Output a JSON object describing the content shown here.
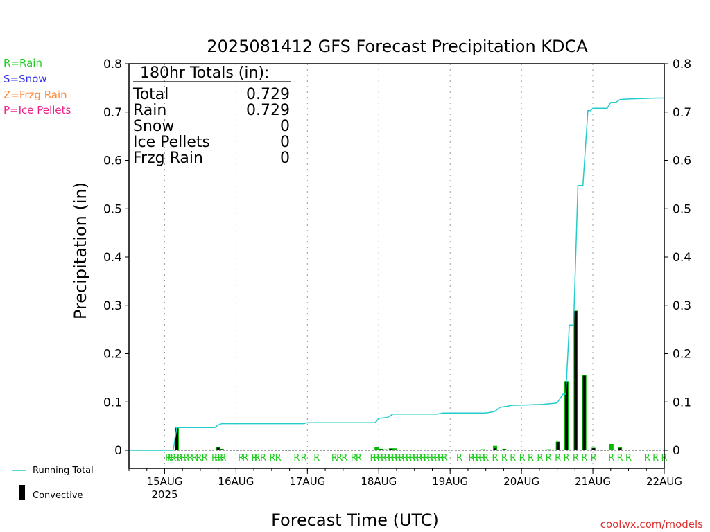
{
  "chart_data": {
    "type": "bar+line",
    "title": "2025081412 GFS Forecast Precipitation KDCA",
    "ylabel": "Precipitation (in)",
    "xlabel": "Forecast Time (UTC)",
    "ylim": [
      0,
      0.8
    ],
    "y_ticks": [
      "0",
      "0.1",
      "0.2",
      "0.3",
      "0.4",
      "0.5",
      "0.6",
      "0.7",
      "0.8"
    ],
    "x_ticks": [
      {
        "label": "15AUG",
        "sub": "2025",
        "day": 1
      },
      {
        "label": "16AUG",
        "sub": "",
        "day": 2
      },
      {
        "label": "17AUG",
        "sub": "",
        "day": 3
      },
      {
        "label": "18AUG",
        "sub": "",
        "day": 4
      },
      {
        "label": "19AUG",
        "sub": "",
        "day": 5
      },
      {
        "label": "20AUG",
        "sub": "",
        "day": 6
      },
      {
        "label": "21AUG",
        "sub": "",
        "day": 7
      },
      {
        "label": "22AUG",
        "sub": "",
        "day": 8
      }
    ],
    "x_range_days": [
      0.5,
      8.0
    ],
    "grid": "vertical dotted at day ticks",
    "totals_box": {
      "heading": "180hr Totals (in):",
      "rows": [
        {
          "label": "Total",
          "value": "0.729"
        },
        {
          "label": "Rain",
          "value": "0.729"
        },
        {
          "label": "Snow",
          "value": "0"
        },
        {
          "label": "Ice Pellets",
          "value": "0"
        },
        {
          "label": "Frzg Rain",
          "value": "0"
        }
      ]
    },
    "type_legend": [
      {
        "label": "R=Rain",
        "color": "#22cc22"
      },
      {
        "label": "S=Snow",
        "color": "#3333ee"
      },
      {
        "label": "Z=Frzg Rain",
        "color": "#ff8833"
      },
      {
        "label": "P=Ice Pellets",
        "color": "#ee2288"
      }
    ],
    "series_legend": [
      {
        "label": "Running Total",
        "color": "#22cccc",
        "kind": "line"
      },
      {
        "label": "Convective",
        "color": "#000000",
        "kind": "bar"
      }
    ],
    "running_total": [
      [
        0.5,
        0
      ],
      [
        1.12,
        0
      ],
      [
        1.17,
        0.047
      ],
      [
        1.7,
        0.047
      ],
      [
        1.75,
        0.052
      ],
      [
        1.8,
        0.055
      ],
      [
        2.95,
        0.055
      ],
      [
        3.0,
        0.057
      ],
      [
        3.95,
        0.057
      ],
      [
        4.0,
        0.066
      ],
      [
        4.12,
        0.068
      ],
      [
        4.2,
        0.075
      ],
      [
        4.82,
        0.075
      ],
      [
        4.9,
        0.077
      ],
      [
        5.5,
        0.077
      ],
      [
        5.58,
        0.079
      ],
      [
        5.62,
        0.08
      ],
      [
        5.7,
        0.089
      ],
      [
        5.8,
        0.091
      ],
      [
        5.86,
        0.093
      ],
      [
        6.12,
        0.094
      ],
      [
        6.3,
        0.095
      ],
      [
        6.45,
        0.097
      ],
      [
        6.5,
        0.098
      ],
      [
        6.58,
        0.116
      ],
      [
        6.62,
        0.116
      ],
      [
        6.67,
        0.259
      ],
      [
        6.73,
        0.259
      ],
      [
        6.79,
        0.548
      ],
      [
        6.86,
        0.548
      ],
      [
        6.93,
        0.703
      ],
      [
        6.97,
        0.703
      ],
      [
        7.0,
        0.708
      ],
      [
        7.2,
        0.708
      ],
      [
        7.25,
        0.72
      ],
      [
        7.32,
        0.72
      ],
      [
        7.38,
        0.726
      ],
      [
        7.5,
        0.727
      ],
      [
        7.9,
        0.729
      ],
      [
        8.0,
        0.729
      ]
    ],
    "bars": [
      {
        "x": 1.17,
        "total": 0.047,
        "convective": 0.045
      },
      {
        "x": 1.75,
        "total": 0.006,
        "convective": 0.005
      },
      {
        "x": 1.8,
        "total": 0.003,
        "convective": 0.002
      },
      {
        "x": 3.97,
        "total": 0.007,
        "convective": 0.001
      },
      {
        "x": 4.03,
        "total": 0.003,
        "convective": 0.002
      },
      {
        "x": 4.09,
        "total": 0.002,
        "convective": 0.001
      },
      {
        "x": 4.17,
        "total": 0.004,
        "convective": 0.003
      },
      {
        "x": 4.22,
        "total": 0.004,
        "convective": 0.001
      },
      {
        "x": 4.92,
        "total": 0.001,
        "convective": 0.001
      },
      {
        "x": 5.46,
        "total": 0.002,
        "convective": 0.001
      },
      {
        "x": 5.63,
        "total": 0.009,
        "convective": 0.004
      },
      {
        "x": 5.76,
        "total": 0.003,
        "convective": 0.002
      },
      {
        "x": 6.38,
        "total": 0.002,
        "convective": 0.001
      },
      {
        "x": 6.51,
        "total": 0.018,
        "convective": 0.017
      },
      {
        "x": 6.63,
        "total": 0.143,
        "convective": 0.142
      },
      {
        "x": 6.76,
        "total": 0.289,
        "convective": 0.288
      },
      {
        "x": 6.88,
        "total": 0.155,
        "convective": 0.154
      },
      {
        "x": 7.01,
        "total": 0.005,
        "convective": 0.004
      },
      {
        "x": 7.26,
        "total": 0.013,
        "convective": 0.001
      },
      {
        "x": 7.38,
        "total": 0.006,
        "convective": 0.004
      }
    ],
    "precip_type_marks": {
      "letter": "R",
      "color": "#22cc22",
      "x": [
        1.05,
        1.08,
        1.12,
        1.17,
        1.21,
        1.26,
        1.3,
        1.36,
        1.42,
        1.48,
        1.56,
        1.7,
        1.74,
        1.78,
        1.82,
        2.07,
        2.13,
        2.26,
        2.3,
        2.38,
        2.51,
        2.59,
        2.85,
        2.95,
        3.13,
        3.38,
        3.45,
        3.52,
        3.65,
        3.72,
        3.92,
        3.97,
        4.02,
        4.07,
        4.12,
        4.17,
        4.22,
        4.27,
        4.32,
        4.37,
        4.42,
        4.47,
        4.52,
        4.57,
        4.62,
        4.67,
        4.72,
        4.77,
        4.82,
        4.87,
        4.92,
        5.13,
        5.3,
        5.35,
        5.4,
        5.45,
        5.5,
        5.63,
        5.76,
        5.88,
        6.01,
        6.13,
        6.26,
        6.38,
        6.51,
        6.63,
        6.76,
        6.88,
        7.01,
        7.26,
        7.38,
        7.5,
        7.76,
        7.88,
        8.0
      ]
    },
    "credit": "coolwx.com/models"
  }
}
